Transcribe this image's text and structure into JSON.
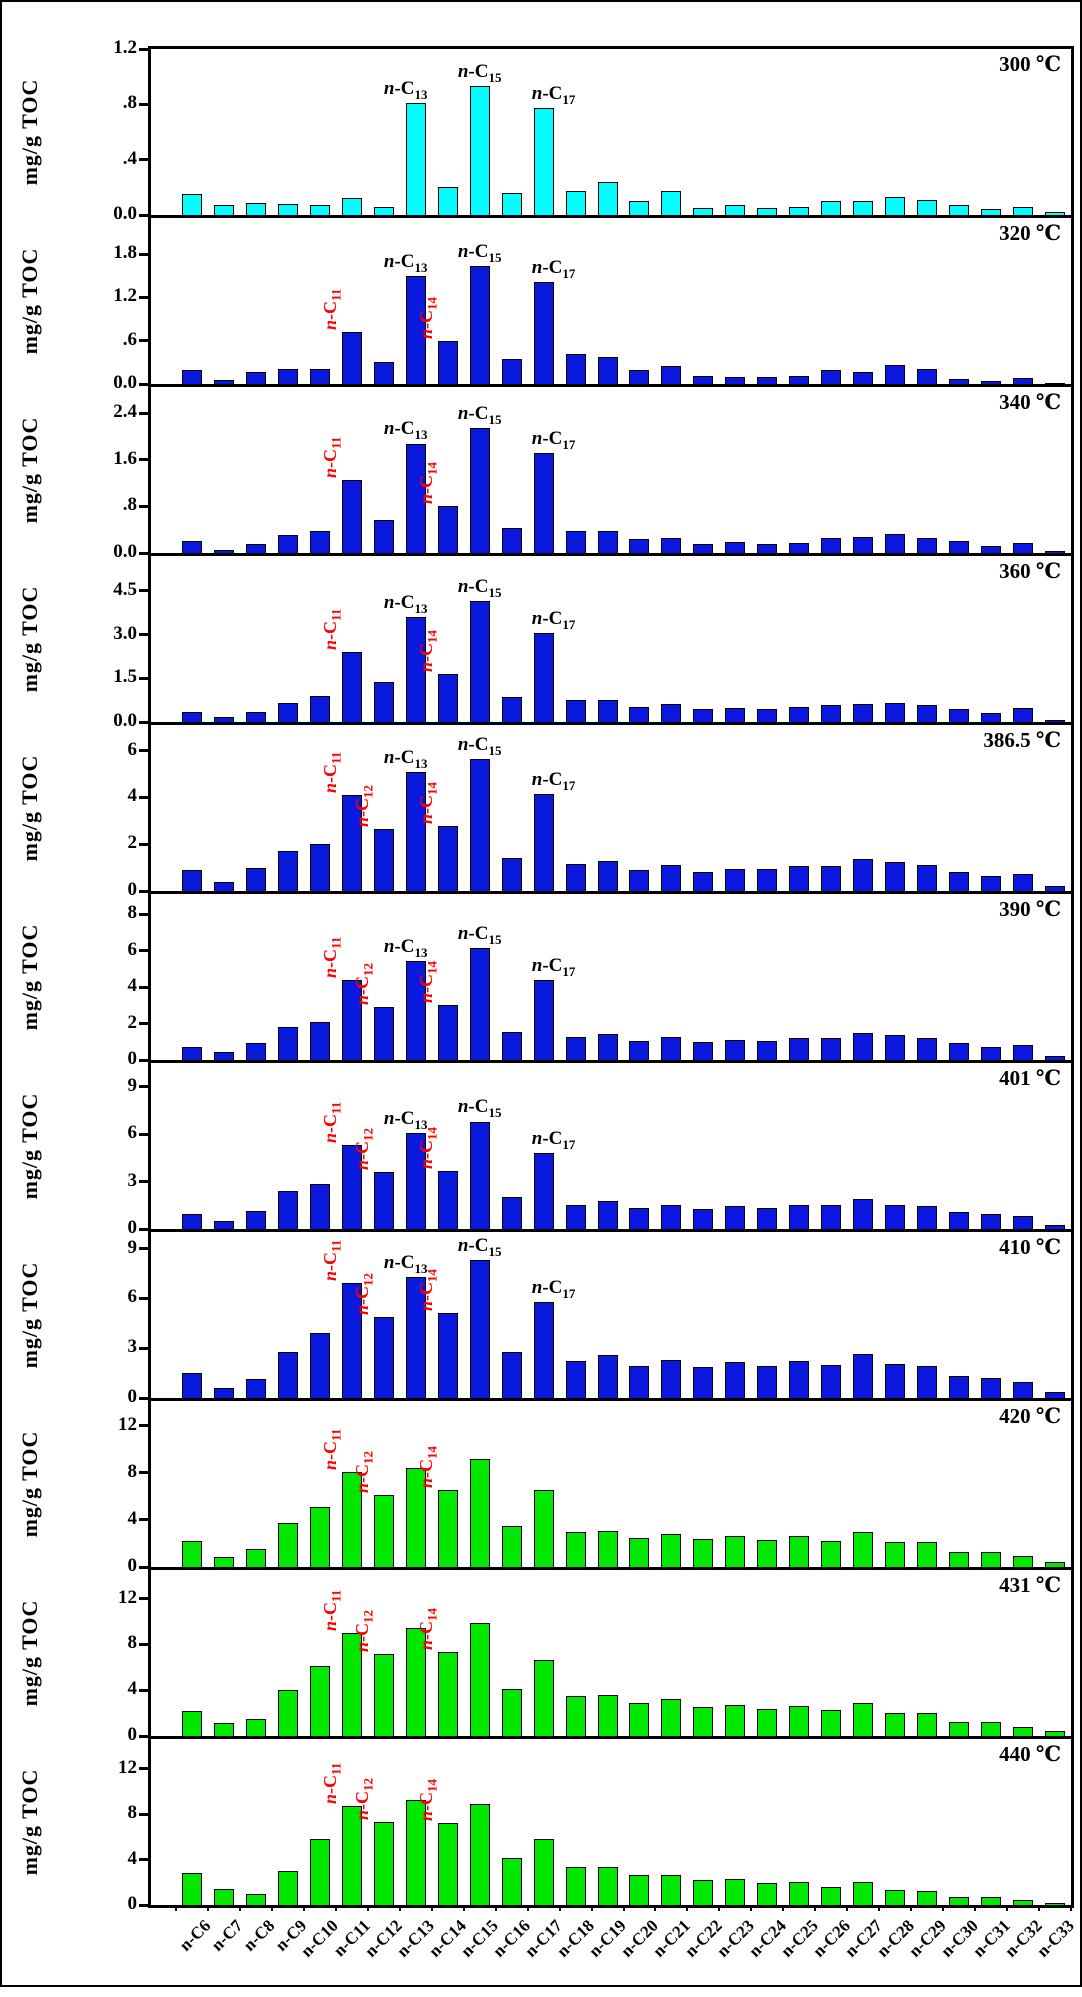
{
  "figure": {
    "y_axis_title": "mg/g TOC",
    "x_categories": [
      "n-C6",
      "n-C7",
      "n-C8",
      "n-C9",
      "n-C10",
      "n-C11",
      "n-C12",
      "n-C13",
      "n-C14",
      "n-C15",
      "n-C16",
      "n-C17",
      "n-C18",
      "n-C19",
      "n-C20",
      "n-C21",
      "n-C22",
      "n-C23",
      "n-C24",
      "n-C25",
      "n-C26",
      "n-C27",
      "n-C28",
      "n-C29",
      "n-C30",
      "n-C31",
      "n-C32",
      "n-C33"
    ],
    "colors": {
      "cyan": "#00ffff",
      "blue": "#0a18e0",
      "green": "#00e800",
      "annotation_red": "#ff0000",
      "axis_black": "#000000"
    }
  },
  "chart_data": [
    {
      "type": "bar",
      "temperature_label": "300 ℃",
      "ylabel": "mg/g TOC",
      "bar_color": "#00ffff",
      "ymax": 1.2,
      "yticks": [
        {
          "v": 0,
          "label": "0.0"
        },
        {
          "v": 0.4,
          "label": ".4"
        },
        {
          "v": 0.8,
          "label": ".8"
        },
        {
          "v": 1.2,
          "label": "1.2"
        }
      ],
      "values": [
        0.15,
        0.07,
        0.09,
        0.08,
        0.07,
        0.12,
        0.06,
        0.81,
        0.2,
        0.93,
        0.16,
        0.77,
        0.17,
        0.24,
        0.1,
        0.17,
        0.05,
        0.07,
        0.05,
        0.06,
        0.1,
        0.1,
        0.13,
        0.11,
        0.07,
        0.04,
        0.06,
        0.02
      ],
      "annotations": [
        {
          "category": "n-C13",
          "sub": "13",
          "color": "black",
          "orient": "h",
          "dx": -10
        },
        {
          "category": "n-C15",
          "sub": "15",
          "color": "black",
          "orient": "h",
          "dx": 0
        },
        {
          "category": "n-C17",
          "sub": "17",
          "color": "black",
          "orient": "h",
          "dx": 10
        }
      ]
    },
    {
      "type": "bar",
      "temperature_label": "320 ℃",
      "ylabel": "mg/g TOC",
      "bar_color": "#0a18e0",
      "ymax": 2.3,
      "yticks": [
        {
          "v": 0,
          "label": "0.0"
        },
        {
          "v": 0.6,
          "label": ".6"
        },
        {
          "v": 1.2,
          "label": "1.2"
        },
        {
          "v": 1.8,
          "label": "1.8"
        }
      ],
      "values": [
        0.2,
        0.06,
        0.16,
        0.21,
        0.21,
        0.72,
        0.3,
        1.5,
        0.59,
        1.63,
        0.34,
        1.42,
        0.41,
        0.38,
        0.2,
        0.25,
        0.11,
        0.1,
        0.1,
        0.11,
        0.2,
        0.16,
        0.27,
        0.21,
        0.07,
        0.04,
        0.09,
        0.02
      ],
      "annotations": [
        {
          "category": "n-C11",
          "sub": "11",
          "color": "red",
          "orient": "v",
          "dx": 0
        },
        {
          "category": "n-C14",
          "sub": "14",
          "color": "red",
          "orient": "v",
          "dx": 0
        },
        {
          "category": "n-C13",
          "sub": "13",
          "color": "black",
          "orient": "h",
          "dx": -10
        },
        {
          "category": "n-C15",
          "sub": "15",
          "color": "black",
          "orient": "h",
          "dx": 0
        },
        {
          "category": "n-C17",
          "sub": "17",
          "color": "black",
          "orient": "h",
          "dx": 10
        }
      ]
    },
    {
      "type": "bar",
      "temperature_label": "340 ℃",
      "ylabel": "mg/g TOC",
      "bar_color": "#0a18e0",
      "ymax": 2.85,
      "yticks": [
        {
          "v": 0,
          "label": "0.0"
        },
        {
          "v": 0.8,
          "label": ".8"
        },
        {
          "v": 1.6,
          "label": "1.6"
        },
        {
          "v": 2.4,
          "label": "2.4"
        }
      ],
      "values": [
        0.2,
        0.06,
        0.16,
        0.31,
        0.38,
        1.25,
        0.56,
        1.88,
        0.81,
        2.15,
        0.43,
        1.72,
        0.38,
        0.37,
        0.24,
        0.26,
        0.16,
        0.19,
        0.16,
        0.18,
        0.26,
        0.28,
        0.33,
        0.26,
        0.2,
        0.12,
        0.17,
        0.03
      ],
      "annotations": [
        {
          "category": "n-C11",
          "sub": "11",
          "color": "red",
          "orient": "v",
          "dx": 0
        },
        {
          "category": "n-C14",
          "sub": "14",
          "color": "red",
          "orient": "v",
          "dx": 0
        },
        {
          "category": "n-C13",
          "sub": "13",
          "color": "black",
          "orient": "h",
          "dx": -10
        },
        {
          "category": "n-C15",
          "sub": "15",
          "color": "black",
          "orient": "h",
          "dx": 0
        },
        {
          "category": "n-C17",
          "sub": "17",
          "color": "black",
          "orient": "h",
          "dx": 10
        }
      ]
    },
    {
      "type": "bar",
      "temperature_label": "360 ℃",
      "ylabel": "mg/g TOC",
      "bar_color": "#0a18e0",
      "ymax": 5.7,
      "yticks": [
        {
          "v": 0,
          "label": "0.0"
        },
        {
          "v": 1.5,
          "label": "1.5"
        },
        {
          "v": 3.0,
          "label": "3.0"
        },
        {
          "v": 4.5,
          "label": "4.5"
        }
      ],
      "values": [
        0.34,
        0.18,
        0.34,
        0.67,
        0.9,
        2.41,
        1.36,
        3.62,
        1.66,
        4.15,
        0.85,
        3.05,
        0.75,
        0.75,
        0.5,
        0.61,
        0.43,
        0.48,
        0.44,
        0.52,
        0.57,
        0.62,
        0.67,
        0.6,
        0.45,
        0.3,
        0.48,
        0.06
      ],
      "annotations": [
        {
          "category": "n-C11",
          "sub": "11",
          "color": "red",
          "orient": "v",
          "dx": 0
        },
        {
          "category": "n-C14",
          "sub": "14",
          "color": "red",
          "orient": "v",
          "dx": 0
        },
        {
          "category": "n-C13",
          "sub": "13",
          "color": "black",
          "orient": "h",
          "dx": -10
        },
        {
          "category": "n-C15",
          "sub": "15",
          "color": "black",
          "orient": "h",
          "dx": 0
        },
        {
          "category": "n-C17",
          "sub": "17",
          "color": "black",
          "orient": "h",
          "dx": 10
        }
      ]
    },
    {
      "type": "bar",
      "temperature_label": "386.5 ℃",
      "ylabel": "mg/g TOC",
      "bar_color": "#0a18e0",
      "ymax": 7.1,
      "yticks": [
        {
          "v": 0,
          "label": "0"
        },
        {
          "v": 2,
          "label": "2"
        },
        {
          "v": 4,
          "label": "4"
        },
        {
          "v": 6,
          "label": "6"
        }
      ],
      "values": [
        0.88,
        0.38,
        0.97,
        1.7,
        2.0,
        4.1,
        2.65,
        5.1,
        2.8,
        5.65,
        1.4,
        4.15,
        1.15,
        1.28,
        0.92,
        1.1,
        0.83,
        0.95,
        0.95,
        1.05,
        1.05,
        1.35,
        1.22,
        1.1,
        0.82,
        0.63,
        0.73,
        0.2
      ],
      "annotations": [
        {
          "category": "n-C11",
          "sub": "11",
          "color": "red",
          "orient": "v",
          "dx": 0
        },
        {
          "category": "n-C12",
          "sub": "12",
          "color": "red",
          "orient": "v",
          "dx": 0
        },
        {
          "category": "n-C14",
          "sub": "14",
          "color": "red",
          "orient": "v",
          "dx": 0
        },
        {
          "category": "n-C13",
          "sub": "13",
          "color": "black",
          "orient": "h",
          "dx": -10
        },
        {
          "category": "n-C15",
          "sub": "15",
          "color": "black",
          "orient": "h",
          "dx": 0
        },
        {
          "category": "n-C17",
          "sub": "17",
          "color": "black",
          "orient": "h",
          "dx": 10
        }
      ]
    },
    {
      "type": "bar",
      "temperature_label": "390 ℃",
      "ylabel": "mg/g TOC",
      "bar_color": "#0a18e0",
      "ymax": 9.1,
      "yticks": [
        {
          "v": 0,
          "label": "0"
        },
        {
          "v": 2,
          "label": "2"
        },
        {
          "v": 4,
          "label": "4"
        },
        {
          "v": 6,
          "label": "6"
        },
        {
          "v": 8,
          "label": "8"
        }
      ],
      "values": [
        0.7,
        0.42,
        0.95,
        1.8,
        2.1,
        4.4,
        2.9,
        5.45,
        3.0,
        6.15,
        1.55,
        4.4,
        1.25,
        1.42,
        1.02,
        1.25,
        1.0,
        1.1,
        1.05,
        1.2,
        1.2,
        1.5,
        1.35,
        1.22,
        0.95,
        0.72,
        0.82,
        0.22
      ],
      "annotations": [
        {
          "category": "n-C11",
          "sub": "11",
          "color": "red",
          "orient": "v",
          "dx": 0
        },
        {
          "category": "n-C12",
          "sub": "12",
          "color": "red",
          "orient": "v",
          "dx": 0
        },
        {
          "category": "n-C14",
          "sub": "14",
          "color": "red",
          "orient": "v",
          "dx": 0
        },
        {
          "category": "n-C13",
          "sub": "13",
          "color": "black",
          "orient": "h",
          "dx": -10
        },
        {
          "category": "n-C15",
          "sub": "15",
          "color": "black",
          "orient": "h",
          "dx": 0
        },
        {
          "category": "n-C17",
          "sub": "17",
          "color": "black",
          "orient": "h",
          "dx": 10
        }
      ]
    },
    {
      "type": "bar",
      "temperature_label": "401 ℃",
      "ylabel": "mg/g TOC",
      "bar_color": "#0a18e0",
      "ymax": 10.5,
      "yticks": [
        {
          "v": 0,
          "label": "0"
        },
        {
          "v": 3,
          "label": "3"
        },
        {
          "v": 6,
          "label": "6"
        },
        {
          "v": 9,
          "label": "9"
        }
      ],
      "values": [
        0.92,
        0.48,
        1.15,
        2.4,
        2.85,
        5.3,
        3.6,
        6.1,
        3.7,
        6.8,
        2.0,
        4.8,
        1.55,
        1.8,
        1.3,
        1.55,
        1.25,
        1.45,
        1.3,
        1.5,
        1.5,
        1.9,
        1.55,
        1.45,
        1.05,
        0.95,
        0.8,
        0.25
      ],
      "annotations": [
        {
          "category": "n-C11",
          "sub": "11",
          "color": "red",
          "orient": "v",
          "dx": 0
        },
        {
          "category": "n-C12",
          "sub": "12",
          "color": "red",
          "orient": "v",
          "dx": 0
        },
        {
          "category": "n-C14",
          "sub": "14",
          "color": "red",
          "orient": "v",
          "dx": 0
        },
        {
          "category": "n-C13",
          "sub": "13",
          "color": "black",
          "orient": "h",
          "dx": -10
        },
        {
          "category": "n-C15",
          "sub": "15",
          "color": "black",
          "orient": "h",
          "dx": 0
        },
        {
          "category": "n-C17",
          "sub": "17",
          "color": "black",
          "orient": "h",
          "dx": 10
        }
      ]
    },
    {
      "type": "bar",
      "temperature_label": "410 ℃",
      "ylabel": "mg/g TOC",
      "bar_color": "#0a18e0",
      "ymax": 10.0,
      "yticks": [
        {
          "v": 0,
          "label": "0"
        },
        {
          "v": 3,
          "label": "3"
        },
        {
          "v": 6,
          "label": "6"
        },
        {
          "v": 9,
          "label": "9"
        }
      ],
      "values": [
        1.5,
        0.62,
        1.15,
        2.8,
        3.9,
        6.9,
        4.9,
        7.3,
        5.1,
        8.3,
        2.8,
        5.8,
        2.2,
        2.6,
        1.95,
        2.3,
        1.85,
        2.15,
        1.9,
        2.2,
        2.0,
        2.65,
        2.05,
        1.95,
        1.3,
        1.2,
        0.95,
        0.35
      ],
      "annotations": [
        {
          "category": "n-C11",
          "sub": "11",
          "color": "red",
          "orient": "v",
          "dx": 0
        },
        {
          "category": "n-C12",
          "sub": "12",
          "color": "red",
          "orient": "v",
          "dx": 0
        },
        {
          "category": "n-C14",
          "sub": "14",
          "color": "red",
          "orient": "v",
          "dx": 0
        },
        {
          "category": "n-C13",
          "sub": "13",
          "color": "black",
          "orient": "h",
          "dx": -10
        },
        {
          "category": "n-C15",
          "sub": "15",
          "color": "black",
          "orient": "h",
          "dx": 0
        },
        {
          "category": "n-C17",
          "sub": "17",
          "color": "black",
          "orient": "h",
          "dx": 10
        }
      ]
    },
    {
      "type": "bar",
      "temperature_label": "420 ℃",
      "ylabel": "mg/g TOC",
      "bar_color": "#00e800",
      "ymax": 14.1,
      "yticks": [
        {
          "v": 0,
          "label": "0"
        },
        {
          "v": 4,
          "label": "4"
        },
        {
          "v": 8,
          "label": "8"
        },
        {
          "v": 12,
          "label": "12"
        }
      ],
      "values": [
        2.2,
        0.85,
        1.5,
        3.7,
        5.1,
        8.1,
        6.1,
        8.4,
        6.5,
        9.2,
        3.5,
        6.5,
        3.0,
        3.1,
        2.5,
        2.8,
        2.4,
        2.6,
        2.3,
        2.6,
        2.2,
        3.0,
        2.1,
        2.1,
        1.3,
        1.3,
        0.9,
        0.45
      ],
      "annotations": [
        {
          "category": "n-C11",
          "sub": "11",
          "color": "red",
          "orient": "v",
          "dx": 0
        },
        {
          "category": "n-C12",
          "sub": "12",
          "color": "red",
          "orient": "v",
          "dx": 0
        },
        {
          "category": "n-C14",
          "sub": "14",
          "color": "red",
          "orient": "v",
          "dx": 0
        }
      ]
    },
    {
      "type": "bar",
      "temperature_label": "431 ℃",
      "ylabel": "mg/g TOC",
      "bar_color": "#00e800",
      "ymax": 14.5,
      "yticks": [
        {
          "v": 0,
          "label": "0"
        },
        {
          "v": 4,
          "label": "4"
        },
        {
          "v": 8,
          "label": "8"
        },
        {
          "v": 12,
          "label": "12"
        }
      ],
      "values": [
        2.2,
        1.1,
        1.5,
        4.0,
        6.1,
        9.0,
        7.2,
        9.4,
        7.3,
        9.9,
        4.1,
        6.6,
        3.5,
        3.6,
        2.85,
        3.2,
        2.5,
        2.7,
        2.35,
        2.6,
        2.25,
        2.9,
        2.0,
        2.0,
        1.25,
        1.25,
        0.8,
        0.45
      ],
      "annotations": [
        {
          "category": "n-C11",
          "sub": "11",
          "color": "red",
          "orient": "v",
          "dx": 0
        },
        {
          "category": "n-C12",
          "sub": "12",
          "color": "red",
          "orient": "v",
          "dx": 0
        },
        {
          "category": "n-C14",
          "sub": "14",
          "color": "red",
          "orient": "v",
          "dx": 0
        }
      ]
    },
    {
      "type": "bar",
      "temperature_label": "440 ℃",
      "ylabel": "mg/g TOC",
      "bar_color": "#00e800",
      "ymax": 14.6,
      "yticks": [
        {
          "v": 0,
          "label": "0"
        },
        {
          "v": 4,
          "label": "4"
        },
        {
          "v": 8,
          "label": "8"
        },
        {
          "v": 12,
          "label": "12"
        }
      ],
      "values": [
        2.8,
        1.4,
        1.0,
        3.0,
        5.8,
        8.7,
        7.3,
        9.2,
        7.2,
        8.9,
        4.1,
        5.8,
        3.3,
        3.3,
        2.6,
        2.65,
        2.2,
        2.25,
        1.9,
        2.0,
        1.6,
        2.05,
        1.3,
        1.2,
        0.7,
        0.7,
        0.4,
        0.2
      ],
      "annotations": [
        {
          "category": "n-C11",
          "sub": "11",
          "color": "red",
          "orient": "v",
          "dx": 0
        },
        {
          "category": "n-C12",
          "sub": "12",
          "color": "red",
          "orient": "v",
          "dx": 0
        },
        {
          "category": "n-C14",
          "sub": "14",
          "color": "red",
          "orient": "v",
          "dx": 0
        }
      ]
    }
  ]
}
